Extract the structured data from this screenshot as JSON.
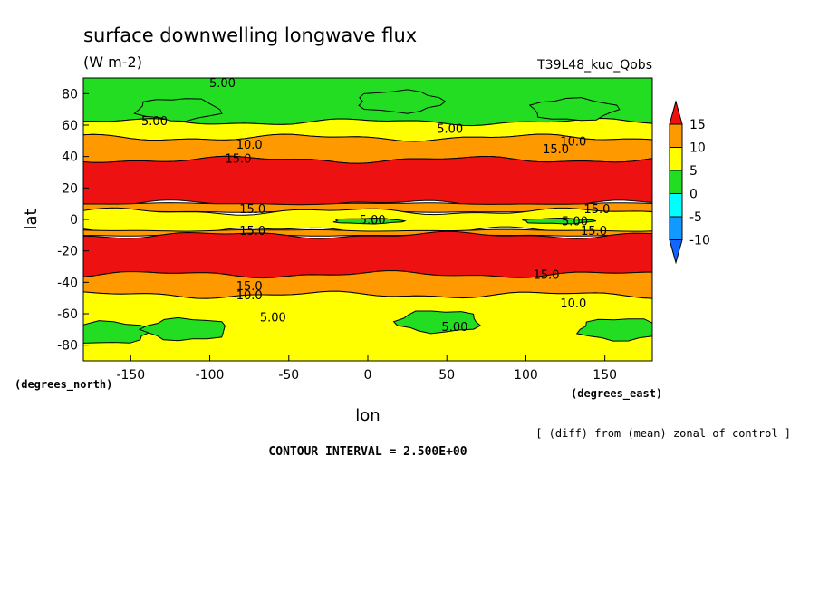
{
  "chart_data": {
    "type": "contour",
    "title": "surface downwelling longwave flux",
    "units": "(W m-2)",
    "run_label": "T39L48_kuo_Qobs",
    "xlabel": "lon",
    "ylabel": "lat",
    "x_units": "(degrees_east)",
    "y_units": "(degrees_north)",
    "xlim": [
      -180,
      180
    ],
    "ylim": [
      -90,
      90
    ],
    "x_ticks": [
      -150,
      -100,
      -50,
      0,
      50,
      100,
      150
    ],
    "y_ticks": [
      80,
      60,
      40,
      20,
      0,
      -20,
      -40,
      -60,
      -80
    ],
    "colorbar": {
      "levels": [
        -10,
        -5,
        0,
        5,
        10,
        15
      ],
      "labels": [
        "15",
        "10",
        "5",
        "0",
        "-5",
        "-10"
      ],
      "colors_top_to_bottom": [
        "#ee1111",
        "#ff9900",
        "#ffff00",
        "#22dd22",
        "#00ffff",
        "#1199ff",
        "#1166ff"
      ]
    },
    "bands": [
      {
        "lat_top": 90,
        "lat_bottom": 62,
        "value": 2.5
      },
      {
        "lat_top": 62,
        "lat_bottom": 52,
        "value": 7.5
      },
      {
        "lat_top": 52,
        "lat_bottom": 38,
        "value": 12.5
      },
      {
        "lat_top": 38,
        "lat_bottom": 10,
        "value": 17.5
      },
      {
        "lat_top": 10,
        "lat_bottom": 5,
        "value": 12.5
      },
      {
        "lat_top": 5,
        "lat_bottom": -7,
        "value": 7.5
      },
      {
        "lat_top": -7,
        "lat_bottom": -10,
        "value": 12.5
      },
      {
        "lat_top": -10,
        "lat_bottom": -35,
        "value": 17.5
      },
      {
        "lat_top": -35,
        "lat_bottom": -48,
        "value": 12.5
      },
      {
        "lat_top": -48,
        "lat_bottom": -90,
        "value": 7.5
      }
    ],
    "patches": [
      {
        "lon": -120,
        "lat": 70,
        "value": 2.5
      },
      {
        "lon": 20,
        "lat": 75,
        "value": 2.5
      },
      {
        "lon": 130,
        "lat": 70,
        "value": 2.5
      },
      {
        "lon": -165,
        "lat": -72,
        "value": 2.5
      },
      {
        "lon": -115,
        "lat": -70,
        "value": 2.5
      },
      {
        "lon": 45,
        "lat": -65,
        "value": 2.5
      },
      {
        "lon": 160,
        "lat": -70,
        "value": 2.5
      },
      {
        "lon": 0,
        "lat": -1,
        "value": 2.5
      },
      {
        "lon": 120,
        "lat": -1,
        "value": 2.5
      }
    ],
    "contour_labels": [
      {
        "text": "5.00",
        "lon": -92,
        "lat": 87
      },
      {
        "text": "5.00",
        "lon": -135,
        "lat": 63
      },
      {
        "text": "5.00",
        "lon": 52,
        "lat": 58
      },
      {
        "text": "10.0",
        "lon": -75,
        "lat": 48
      },
      {
        "text": "10.0",
        "lon": 130,
        "lat": 50
      },
      {
        "text": "15.0",
        "lon": -82,
        "lat": 39
      },
      {
        "text": "15.0",
        "lon": 119,
        "lat": 45
      },
      {
        "text": "15.0",
        "lon": -73,
        "lat": 7
      },
      {
        "text": "15.0",
        "lon": 145,
        "lat": 7
      },
      {
        "text": "5.00",
        "lon": 3,
        "lat": 0
      },
      {
        "text": "5.00",
        "lon": 131,
        "lat": -1
      },
      {
        "text": "15.0",
        "lon": -73,
        "lat": -7
      },
      {
        "text": "15.0",
        "lon": 143,
        "lat": -7
      },
      {
        "text": "15.0",
        "lon": 113,
        "lat": -35
      },
      {
        "text": "15.0",
        "lon": -75,
        "lat": -42
      },
      {
        "text": "10.0",
        "lon": -75,
        "lat": -48
      },
      {
        "text": "10.0",
        "lon": 130,
        "lat": -53
      },
      {
        "text": "5.00",
        "lon": -60,
        "lat": -62
      },
      {
        "text": "5.00",
        "lon": 55,
        "lat": -68
      }
    ],
    "annotations": {
      "note": "[ (diff) from (mean) zonal of control ]",
      "contour_interval": "CONTOUR INTERVAL = 2.500E+00"
    }
  }
}
